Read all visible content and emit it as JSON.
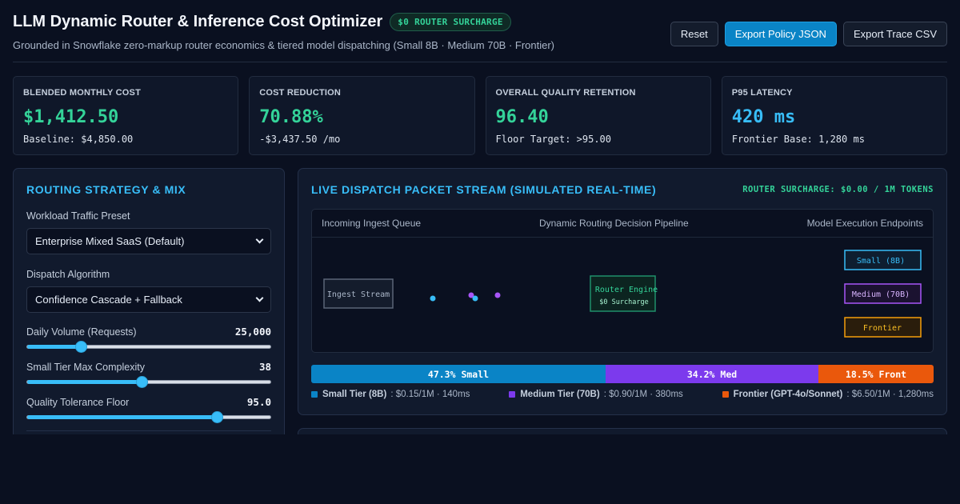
{
  "header": {
    "title": "LLM Dynamic Router & Inference Cost Optimizer",
    "badge": "$0 ROUTER SURCHARGE",
    "subtitle": "Grounded in Snowflake zero-markup router economics & tiered model dispatching (Small 8B · Medium 70B · Frontier)",
    "buttons": {
      "reset": "Reset",
      "export_policy": "Export Policy JSON",
      "export_trace": "Export Trace CSV"
    }
  },
  "kpis": [
    {
      "label": "BLENDED MONTHLY COST",
      "value": "$1,412.50",
      "sub": "Baseline: $4,850.00",
      "color": "#34d399"
    },
    {
      "label": "COST REDUCTION",
      "value": "70.88%",
      "sub": "-$3,437.50 /mo",
      "color": "#34d399"
    },
    {
      "label": "OVERALL QUALITY RETENTION",
      "value": "96.40",
      "sub": "Floor Target: >95.00",
      "color": "#34d399"
    },
    {
      "label": "P95 LATENCY",
      "value": "420 ms",
      "sub": "Frontier Base: 1,280 ms",
      "color": "#38bdf8"
    }
  ],
  "strategy": {
    "title": "ROUTING STRATEGY & MIX",
    "preset_label": "Workload Traffic Preset",
    "preset_value": "Enterprise Mixed SaaS (Default)",
    "algo_label": "Dispatch Algorithm",
    "algo_value": "Confidence Cascade + Fallback",
    "sliders": [
      {
        "label": "Daily Volume (Requests)",
        "display": "25,000",
        "fraction": 0.22
      },
      {
        "label": "Small Tier Max Complexity",
        "display": "38",
        "fraction": 0.47
      },
      {
        "label": "Quality Tolerance Floor",
        "display": "95.0",
        "fraction": 0.78
      }
    ]
  },
  "stream": {
    "title": "LIVE DISPATCH PACKET STREAM (SIMULATED REAL-TIME)",
    "surcharge": "ROUTER SURCHARGE: $0.00 / 1M TOKENS",
    "col_ingest": "Incoming Ingest Queue",
    "col_pipeline": "Dynamic Routing Decision Pipeline",
    "col_endpoints": "Model Execution Endpoints",
    "ingest_box": "Ingest Stream",
    "router_box": "Router Engine",
    "router_sub": "$0 Surcharge",
    "endpoints": [
      {
        "label": "Small (8B)",
        "color": "#38bdf8"
      },
      {
        "label": "Medium (70B)",
        "color": "#a855f7"
      },
      {
        "label": "Frontier",
        "color": "#f59e0b"
      }
    ],
    "packets": [
      {
        "color": "#38bdf8"
      },
      {
        "color": "#a855f7"
      },
      {
        "color": "#38bdf8"
      },
      {
        "color": "#a855f7"
      }
    ]
  },
  "mix": [
    {
      "label": "47.3% Small",
      "share": 47.3,
      "color": "#0a84c6"
    },
    {
      "label": "34.2% Med",
      "share": 34.2,
      "color": "#7c3aed"
    },
    {
      "label": "18.5% Front",
      "share": 18.5,
      "color": "#ea580c"
    }
  ],
  "legend": [
    {
      "name": "Small Tier (8B)",
      "detail": ": $0.15/1M · 140ms",
      "color": "#0a84c6"
    },
    {
      "name": "Medium Tier (70B)",
      "detail": ": $0.90/1M · 380ms",
      "color": "#7c3aed"
    },
    {
      "name": "Frontier (GPT-4o/Sonnet)",
      "detail": ": $6.50/1M · 1,280ms",
      "color": "#ea580c"
    }
  ]
}
